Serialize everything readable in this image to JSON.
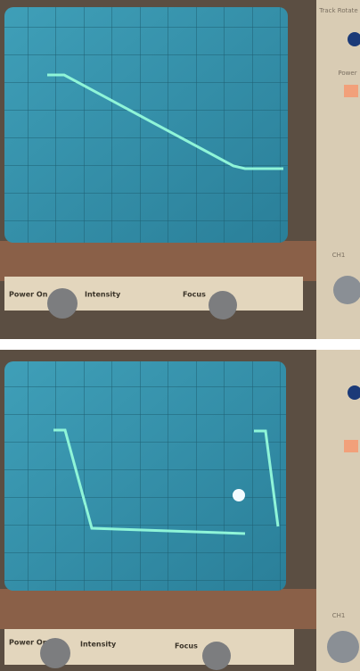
{
  "photos": [
    {
      "track_rotate": "Track Rotate",
      "power": "Power",
      "power_switch": "Power On",
      "intensity": "Intensity",
      "focus": "Focus",
      "channel": "CH1"
    },
    {
      "power_switch": "Power On",
      "intensity": "Intensity",
      "focus": "Focus",
      "channel": "CH1"
    }
  ]
}
